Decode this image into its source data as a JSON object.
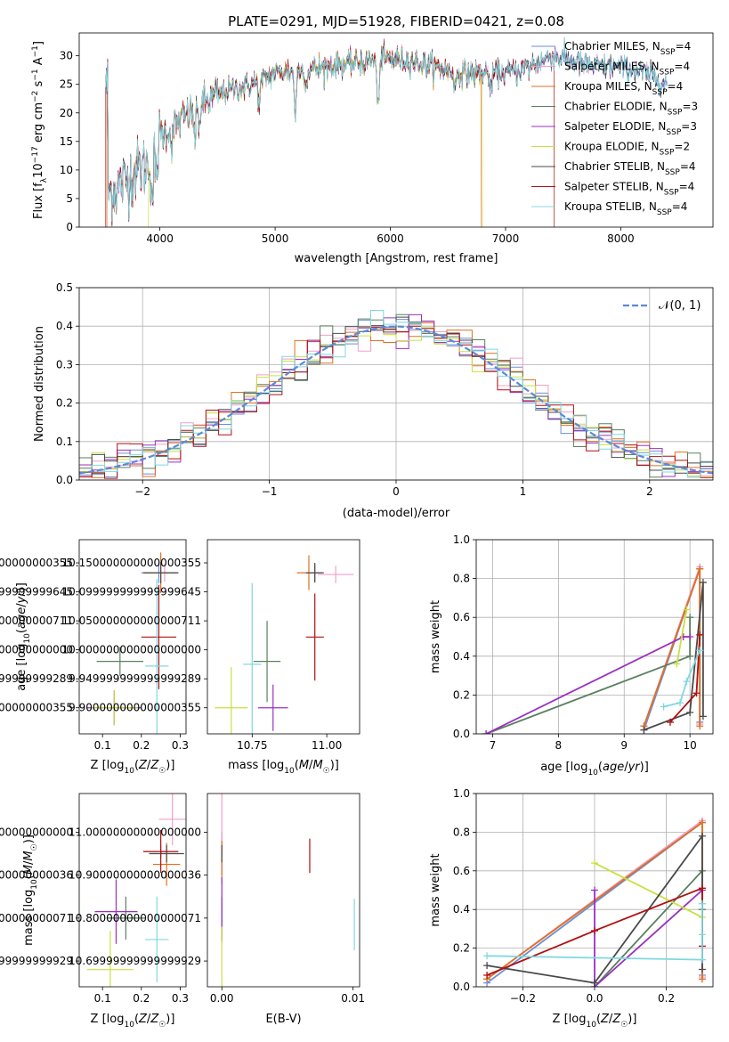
{
  "figure_title": "PLATE=0291, MJD=51928, FIBERID=0421, z=0.08",
  "colors": {
    "Chabrier MILES": "#6b8fd6",
    "Salpeter MILES": "#f0a0c8",
    "Kroupa MILES": "#e07020",
    "Chabrier ELODIE": "#5a8060",
    "Salpeter ELODIE": "#9a30c0",
    "Kroupa ELODIE": "#c8e040",
    "Chabrier STELIB": "#4a4a4a",
    "Salpeter STELIB": "#b01010",
    "Kroupa STELIB": "#80d8e0",
    "normal_curve": "#5a8ad8"
  },
  "chart_data": [
    {
      "id": "spectrum",
      "type": "line",
      "xlabel": "wavelength [Angstrom, rest frame]",
      "ylabel": "Flux [f_λ 10^-17 erg cm^-2 s^-1 A^-1]",
      "xlim": [
        3300,
        8800
      ],
      "ylim": [
        0,
        34
      ],
      "xticks": [
        4000,
        5000,
        6000,
        7000,
        8000
      ],
      "yticks": [
        0,
        5,
        10,
        15,
        20,
        25,
        30
      ],
      "grid": false,
      "legend_position": "right",
      "legend": [
        {
          "label": "Chabrier MILES, N",
          "sub": "SSP",
          "tail": "=4"
        },
        {
          "label": "Salpeter MILES, N",
          "sub": "SSP",
          "tail": "=4"
        },
        {
          "label": "Kroupa MILES, N",
          "sub": "SSP",
          "tail": "=4"
        },
        {
          "label": "Chabrier ELODIE, N",
          "sub": "SSP",
          "tail": "=3"
        },
        {
          "label": "Salpeter ELODIE, N",
          "sub": "SSP",
          "tail": "=3"
        },
        {
          "label": "Kroupa ELODIE, N",
          "sub": "SSP",
          "tail": "=2"
        },
        {
          "label": "Chabrier STELIB, N",
          "sub": "SSP",
          "tail": "=4"
        },
        {
          "label": "Salpeter STELIB, N",
          "sub": "SSP",
          "tail": "=4"
        },
        {
          "label": "Kroupa STELIB, N",
          "sub": "SSP",
          "tail": "=4"
        }
      ],
      "continuum": [
        [
          3550,
          6
        ],
        [
          3700,
          8
        ],
        [
          3800,
          10
        ],
        [
          3900,
          11
        ],
        [
          4000,
          16
        ],
        [
          4200,
          19
        ],
        [
          4400,
          22
        ],
        [
          4600,
          24
        ],
        [
          4800,
          25
        ],
        [
          5000,
          27
        ],
        [
          5200,
          27.5
        ],
        [
          5400,
          28
        ],
        [
          5600,
          28.5
        ],
        [
          5800,
          29
        ],
        [
          6000,
          29.5
        ],
        [
          6200,
          29
        ],
        [
          6400,
          28
        ],
        [
          6600,
          27
        ],
        [
          6800,
          27
        ],
        [
          7000,
          27
        ],
        [
          7200,
          28
        ],
        [
          7400,
          30
        ],
        [
          7600,
          29
        ],
        [
          7800,
          28
        ],
        [
          8000,
          28
        ],
        [
          8200,
          27
        ],
        [
          8400,
          25
        ]
      ],
      "absorption_lines": [
        [
          3934,
          8
        ],
        [
          3969,
          7
        ],
        [
          4102,
          3
        ],
        [
          4304,
          5
        ],
        [
          4340,
          3
        ],
        [
          4861,
          4
        ],
        [
          5175,
          8
        ],
        [
          5270,
          3
        ],
        [
          5893,
          9
        ],
        [
          6563,
          3
        ],
        [
          6870,
          4
        ]
      ],
      "wavelength_range": [
        3530,
        8400
      ],
      "model_cutoffs": [
        {
          "series": "Kroupa MILES",
          "range": [
            3540,
            6790
          ]
        },
        {
          "series": "Kroupa ELODIE",
          "range": [
            3900,
            6800
          ]
        },
        {
          "series": "Salpeter STELIB",
          "range": [
            3530,
            7420
          ]
        }
      ]
    },
    {
      "id": "residuals",
      "type": "histogram",
      "xlabel": "(data-model)/error",
      "ylabel": "Normed distribution",
      "xlim": [
        -2.5,
        2.5
      ],
      "ylim": [
        0,
        0.5
      ],
      "xticks": [
        -2,
        -1,
        0,
        1,
        2
      ],
      "yticks": [
        0,
        0.1,
        0.2,
        0.3,
        0.4,
        0.5
      ],
      "grid": true,
      "bins": 50,
      "legend": "𝒩(0, 1)",
      "legend_position": "top-right"
    },
    {
      "id": "age-vs-Z",
      "type": "errorbar",
      "xlabel": "Z [log10(Z/Z☉)]",
      "ylabel": "age [log10(age/yr)]",
      "xlim": [
        0.04,
        0.315
      ],
      "ylim": [
        9.855,
        10.19
      ],
      "xticks": [
        0.1,
        0.2,
        0.3
      ],
      "yticks": [
        9.9,
        9.95,
        10.0,
        10.05,
        10.1,
        10.15
      ],
      "grid": false,
      "points": [
        {
          "series": "Chabrier MILES",
          "x": 0.245,
          "xerr": 0.045,
          "y": 10.133,
          "yerr": 0.018
        },
        {
          "series": "Salpeter MILES",
          "x": 0.26,
          "xerr": 0.035,
          "y": 10.133,
          "yerr": 0.015
        },
        {
          "series": "Kroupa MILES",
          "x": 0.25,
          "xerr": 0.045,
          "y": 10.133,
          "yerr": 0.035
        },
        {
          "series": "Chabrier ELODIE",
          "x": 0.145,
          "xerr": 0.06,
          "y": 9.98,
          "yerr": 0.025
        },
        {
          "series": "Salpeter ELODIE",
          "x": 0.13,
          "xerr": 0.07,
          "y": 9.9,
          "yerr": 0.03
        },
        {
          "series": "Kroupa ELODIE",
          "x": 0.13,
          "xerr": 0.06,
          "y": 9.9,
          "yerr": 0.03
        },
        {
          "series": "Chabrier STELIB",
          "x": 0.25,
          "xerr": 0.045,
          "y": 10.133,
          "yerr": 0.018
        },
        {
          "series": "Salpeter STELIB",
          "x": 0.245,
          "xerr": 0.045,
          "y": 10.022,
          "yerr": 0.09
        },
        {
          "series": "Kroupa STELIB",
          "x": 0.24,
          "xerr": 0.03,
          "y": 9.972,
          "yerr": 0.15
        }
      ]
    },
    {
      "id": "age-vs-mass",
      "type": "errorbar",
      "xlabel": "mass [log10(M/M☉)]",
      "ylabel": "",
      "xlim": [
        10.6,
        11.11
      ],
      "ylim": [
        9.855,
        10.19
      ],
      "xticks": [
        10.75,
        11.0
      ],
      "yticks": [
        9.9,
        9.95,
        10.0,
        10.05,
        10.1,
        10.15
      ],
      "grid": false,
      "points": [
        {
          "series": "Chabrier MILES",
          "x": 10.96,
          "xerr": 0.025,
          "y": 10.133,
          "yerr": 0.015
        },
        {
          "series": "Salpeter MILES",
          "x": 11.03,
          "xerr": 0.06,
          "y": 10.13,
          "yerr": 0.015
        },
        {
          "series": "Kroupa MILES",
          "x": 10.94,
          "xerr": 0.04,
          "y": 10.133,
          "yerr": 0.03
        },
        {
          "series": "Chabrier ELODIE",
          "x": 10.8,
          "xerr": 0.045,
          "y": 9.98,
          "yerr": 0.07
        },
        {
          "series": "Salpeter ELODIE",
          "x": 10.82,
          "xerr": 0.05,
          "y": 9.9,
          "yerr": 0.04
        },
        {
          "series": "Kroupa ELODIE",
          "x": 10.68,
          "xerr": 0.055,
          "y": 9.9,
          "yerr": 0.07
        },
        {
          "series": "Chabrier STELIB",
          "x": 10.96,
          "xerr": 0.03,
          "y": 10.133,
          "yerr": 0.017
        },
        {
          "series": "Salpeter STELIB",
          "x": 10.96,
          "xerr": 0.03,
          "y": 10.022,
          "yerr": 0.075
        },
        {
          "series": "Kroupa STELIB",
          "x": 10.75,
          "xerr": 0.03,
          "y": 9.975,
          "yerr": 0.14
        }
      ]
    },
    {
      "id": "mass-weight-vs-age",
      "type": "line",
      "xlabel": "age [log10(age/yr)]",
      "ylabel": "mass weight",
      "xlim": [
        6.75,
        10.35
      ],
      "ylim": [
        0,
        1
      ],
      "xticks": [
        7,
        8,
        9,
        10
      ],
      "yticks": [
        0,
        0.2,
        0.4,
        0.6,
        0.8,
        1.0
      ],
      "grid": true,
      "series": [
        {
          "name": "Chabrier MILES",
          "points": [
            [
              9.3,
              0.02
            ],
            [
              10.15,
              0.85
            ],
            [
              10.15,
              0.06
            ]
          ]
        },
        {
          "name": "Salpeter MILES",
          "points": [
            [
              9.3,
              0.04
            ],
            [
              10.15,
              0.86
            ],
            [
              10.15,
              0.05
            ]
          ]
        },
        {
          "name": "Kroupa MILES",
          "points": [
            [
              9.3,
              0.04
            ],
            [
              10.15,
              0.85
            ],
            [
              10.15,
              0.04
            ]
          ]
        },
        {
          "name": "Chabrier ELODIE",
          "points": [
            [
              6.9,
              0.0
            ],
            [
              10.0,
              0.4
            ],
            [
              10.0,
              0.6
            ]
          ]
        },
        {
          "name": "Salpeter ELODIE",
          "points": [
            [
              6.9,
              0.0
            ],
            [
              9.9,
              0.5
            ],
            [
              10.0,
              0.5
            ]
          ]
        },
        {
          "name": "Kroupa ELODIE",
          "points": [
            [
              9.8,
              0.36
            ],
            [
              9.95,
              0.64
            ]
          ]
        },
        {
          "name": "Chabrier STELIB",
          "points": [
            [
              9.3,
              0.02
            ],
            [
              10.0,
              0.11
            ],
            [
              10.2,
              0.78
            ],
            [
              10.2,
              0.09
            ]
          ]
        },
        {
          "name": "Salpeter STELIB",
          "points": [
            [
              9.7,
              0.06
            ],
            [
              10.1,
              0.21
            ],
            [
              10.15,
              0.51
            ]
          ]
        },
        {
          "name": "Kroupa STELIB",
          "points": [
            [
              9.6,
              0.14
            ],
            [
              9.85,
              0.16
            ],
            [
              9.95,
              0.27
            ],
            [
              10.15,
              0.43
            ]
          ]
        }
      ]
    },
    {
      "id": "mass-vs-Z",
      "type": "errorbar",
      "xlabel": "Z [log10(Z/Z☉)]",
      "ylabel": "mass [log10(M/M☉)]",
      "xlim": [
        0.04,
        0.315
      ],
      "ylim": [
        10.64,
        11.09
      ],
      "xticks": [
        0.1,
        0.2,
        0.3
      ],
      "yticks": [
        10.7,
        10.8,
        10.9,
        11.0
      ],
      "grid": false,
      "points": [
        {
          "series": "Chabrier MILES",
          "x": 0.25,
          "xerr": 0.045,
          "y": 10.955,
          "yerr": 0.015
        },
        {
          "series": "Salpeter MILES",
          "x": 0.28,
          "xerr": 0.035,
          "y": 11.03,
          "yerr": 0.06
        },
        {
          "series": "Kroupa MILES",
          "x": 0.265,
          "xerr": 0.035,
          "y": 10.925,
          "yerr": 0.05
        },
        {
          "series": "Chabrier ELODIE",
          "x": 0.16,
          "xerr": 0.05,
          "y": 10.8,
          "yerr": 0.05
        },
        {
          "series": "Salpeter ELODIE",
          "x": 0.135,
          "xerr": 0.055,
          "y": 10.815,
          "yerr": 0.075
        },
        {
          "series": "Kroupa ELODIE",
          "x": 0.12,
          "xerr": 0.06,
          "y": 10.68,
          "yerr": 0.09
        },
        {
          "series": "Chabrier STELIB",
          "x": 0.265,
          "xerr": 0.045,
          "y": 10.95,
          "yerr": 0.02
        },
        {
          "series": "Salpeter STELIB",
          "x": 0.25,
          "xerr": 0.045,
          "y": 10.955,
          "yerr": 0.05
        },
        {
          "series": "Kroupa STELIB",
          "x": 0.24,
          "xerr": 0.03,
          "y": 10.75,
          "yerr": 0.1
        }
      ]
    },
    {
      "id": "mass-vs-ebv",
      "type": "errorbar",
      "xlabel": "E(B-V)",
      "ylabel": "",
      "xlim": [
        -0.0011,
        0.0105
      ],
      "ylim": [
        10.64,
        11.09
      ],
      "xticks": [
        0.0,
        0.01
      ],
      "yticks": [
        10.7,
        10.8,
        10.9,
        11.0
      ],
      "grid": false,
      "points": [
        {
          "series": "Chabrier MILES",
          "x": 0.0,
          "xerr": 0,
          "y": 10.95,
          "yerr": 0.05
        },
        {
          "series": "Salpeter MILES",
          "x": 0.0,
          "xerr": 0,
          "y": 11.03,
          "yerr": 0.06
        },
        {
          "series": "Kroupa MILES",
          "x": 0.0,
          "xerr": 0,
          "y": 10.93,
          "yerr": 0.05
        },
        {
          "series": "Chabrier ELODIE",
          "x": 0.0,
          "xerr": 0,
          "y": 10.8,
          "yerr": 0.05
        },
        {
          "series": "Salpeter ELODIE",
          "x": 0.0,
          "xerr": 0,
          "y": 10.82,
          "yerr": 0.075
        },
        {
          "series": "Kroupa ELODIE",
          "x": 0.0,
          "xerr": 0,
          "y": 10.7,
          "yerr": 0.08
        },
        {
          "series": "Chabrier STELIB",
          "x": 0.0,
          "xerr": 0,
          "y": 10.95,
          "yerr": 0.02
        },
        {
          "series": "Salpeter STELIB",
          "x": 0.0067,
          "xerr": 0,
          "y": 10.945,
          "yerr": 0.04
        },
        {
          "series": "Kroupa STELIB",
          "x": 0.0101,
          "xerr": 0,
          "y": 10.785,
          "yerr": 0.06
        }
      ]
    },
    {
      "id": "mass-weight-vs-Z",
      "type": "line",
      "xlabel": "Z [log10(Z/Z☉)]",
      "ylabel": "mass weight",
      "xlim": [
        -0.33,
        0.33
      ],
      "ylim": [
        0,
        1
      ],
      "xticks": [
        -0.2,
        0.0,
        0.2
      ],
      "yticks": [
        0,
        0.2,
        0.4,
        0.6,
        0.8,
        1.0
      ],
      "grid": true,
      "series": [
        {
          "name": "Chabrier MILES",
          "points": [
            [
              -0.3,
              0.02
            ],
            [
              0.3,
              0.85
            ],
            [
              0.3,
              0.06
            ]
          ]
        },
        {
          "name": "Salpeter MILES",
          "points": [
            [
              -0.3,
              0.04
            ],
            [
              0.3,
              0.86
            ],
            [
              0.3,
              0.05
            ]
          ]
        },
        {
          "name": "Kroupa MILES",
          "points": [
            [
              -0.3,
              0.04
            ],
            [
              0.3,
              0.85
            ],
            [
              0.3,
              0.04
            ]
          ]
        },
        {
          "name": "Chabrier ELODIE",
          "points": [
            [
              0.0,
              0.0
            ],
            [
              0.3,
              0.6
            ],
            [
              0.3,
              0.4
            ]
          ]
        },
        {
          "name": "Salpeter ELODIE",
          "points": [
            [
              0.0,
              0.5
            ],
            [
              0.0,
              0.0
            ],
            [
              0.3,
              0.5
            ]
          ]
        },
        {
          "name": "Kroupa ELODIE",
          "points": [
            [
              0.0,
              0.64
            ],
            [
              0.3,
              0.36
            ]
          ]
        },
        {
          "name": "Chabrier STELIB",
          "points": [
            [
              -0.3,
              0.11
            ],
            [
              0.0,
              0.02
            ],
            [
              0.3,
              0.78
            ],
            [
              0.3,
              0.09
            ]
          ]
        },
        {
          "name": "Salpeter STELIB",
          "points": [
            [
              -0.3,
              0.06
            ],
            [
              0.0,
              0.29
            ],
            [
              0.3,
              0.51
            ],
            [
              0.3,
              0.21
            ]
          ]
        },
        {
          "name": "Kroupa STELIB",
          "points": [
            [
              -0.3,
              0.16
            ],
            [
              0.3,
              0.14
            ],
            [
              0.3,
              0.27
            ],
            [
              0.3,
              0.43
            ]
          ]
        }
      ]
    }
  ]
}
